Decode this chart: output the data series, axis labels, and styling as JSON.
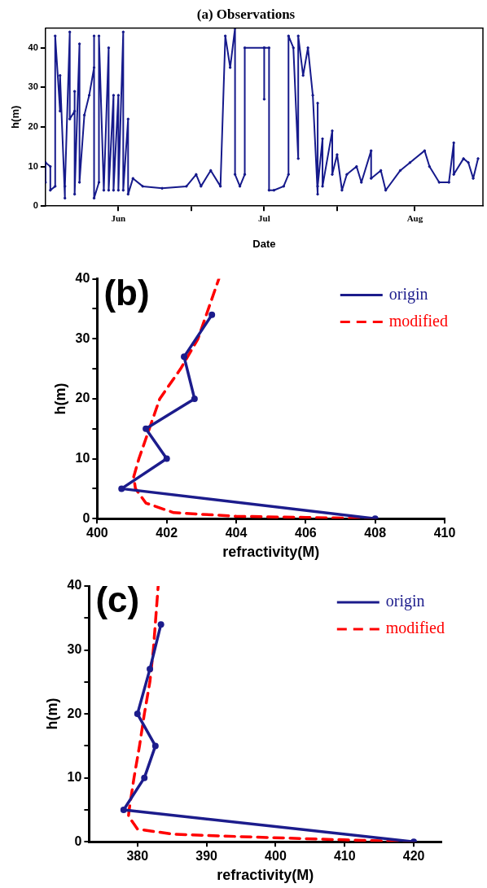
{
  "chart_data": [
    {
      "type": "line",
      "title": "(a) Observations",
      "xlabel": "Date",
      "ylabel": "h(m)",
      "x": [
        "--05-17",
        "--05-17",
        "--05-18",
        "--05-18",
        "--05-19",
        "--05-19",
        "--05-20",
        "--05-20",
        "--05-21",
        "--05-21",
        "--05-22",
        "--05-22",
        "--05-23",
        "--05-23",
        "--05-23",
        "--05-24",
        "--05-24",
        "--05-25",
        "--05-26",
        "--05-27",
        "--05-27",
        "--05-27",
        "--05-28",
        "--05-28",
        "--05-29",
        "--05-30",
        "--05-30",
        "--05-31",
        "--05-31",
        "--06-01",
        "--06-01",
        "--06-02",
        "--06-02",
        "--06-03",
        "--06-03",
        "--06-04",
        "--06-06",
        "--06-10",
        "--06-15",
        "--06-17",
        "--06-18",
        "--06-20",
        "--06-22",
        "--06-23",
        "--06-24",
        "--06-25",
        "--06-25",
        "--06-26",
        "--06-27",
        "--06-27",
        "--07-01",
        "--07-01",
        "--07-01",
        "--07-02",
        "--07-02",
        "--07-03",
        "--07-05",
        "--07-06",
        "--07-06",
        "--07-07",
        "--07-08",
        "--07-08",
        "--07-09",
        "--07-10",
        "--07-11",
        "--07-12",
        "--07-12",
        "--07-12",
        "--07-13",
        "--07-13",
        "--07-15",
        "--07-15",
        "--07-16",
        "--07-17",
        "--07-18",
        "--07-20",
        "--07-21",
        "--07-23",
        "--07-23",
        "--07-25",
        "--07-26",
        "--07-29",
        "--07-31",
        "--08-03",
        "--08-04",
        "--08-06",
        "--08-08",
        "--08-09",
        "--08-09",
        "--08-11",
        "--08-12",
        "--08-13",
        "--08-14"
      ],
      "series": [
        {
          "color": "#161a8c",
          "marker": "circle",
          "line_style": "solid",
          "values": [
            6,
            11,
            10,
            4,
            5,
            43,
            24,
            33,
            2,
            5,
            44,
            22,
            24,
            29,
            3,
            41,
            6,
            23,
            28,
            35,
            43,
            2,
            6,
            43,
            4,
            40,
            4,
            28,
            4,
            28,
            4,
            44,
            4,
            22,
            3,
            7,
            5,
            4.5,
            5,
            8,
            5,
            9,
            5,
            43,
            35,
            45,
            8,
            5,
            8,
            40,
            40,
            27,
            40,
            40,
            4,
            4,
            5,
            8,
            43,
            40,
            12,
            43,
            33,
            40,
            28,
            3,
            26,
            5,
            17,
            5,
            19,
            8,
            13,
            4,
            8,
            10,
            6,
            14,
            7,
            9,
            4,
            9,
            11,
            14,
            10,
            6,
            6,
            16,
            8,
            12,
            11,
            7,
            12
          ]
        }
      ],
      "xlim": [
        "--05-17",
        "--08-15"
      ],
      "xticks": [
        {
          "value": "--06-01",
          "label": "Jun"
        },
        {
          "value": "--06-16",
          "label": null
        },
        {
          "value": "--07-01",
          "label": "Jul"
        },
        {
          "value": "--07-16",
          "label": null
        },
        {
          "value": "--08-01",
          "label": "Aug"
        }
      ],
      "ylim": [
        0,
        45
      ],
      "yticks": [
        0,
        10,
        20,
        30,
        40
      ]
    },
    {
      "type": "line",
      "title": "(b)",
      "xlabel": "refractivity(M)",
      "ylabel": "h(m)",
      "legend": "top right",
      "series": [
        {
          "name": "origin",
          "color": "#1c1c8c",
          "marker": "circle",
          "line_style": "solid",
          "x": [
            408,
            400.7,
            402,
            401.4,
            402.8,
            402.5,
            403.3
          ],
          "values": [
            0,
            5,
            10,
            15,
            20,
            27,
            34
          ]
        },
        {
          "name": "modified",
          "color": "#ff0000",
          "marker": "none",
          "line_style": "dashed",
          "x": [
            408,
            406,
            404,
            402.2,
            401.4,
            401.1,
            401.05,
            401.2,
            401.5,
            401.8,
            402.4,
            402.9,
            403.5
          ],
          "values": [
            0,
            0.2,
            0.4,
            1,
            2.6,
            5,
            7,
            10,
            15,
            20,
            25,
            30,
            40
          ]
        }
      ],
      "xlim": [
        400,
        410
      ],
      "xticks": [
        400,
        402,
        404,
        406,
        408,
        410
      ],
      "ylim": [
        0,
        40
      ],
      "yticks": [
        0,
        {
          "value": 5,
          "label": null
        },
        10,
        {
          "value": 15,
          "label": null
        },
        20,
        {
          "value": 25,
          "label": null
        },
        30,
        {
          "value": 35,
          "label": null
        },
        40
      ]
    },
    {
      "type": "line",
      "title": "(c)",
      "xlabel": "refractivity(M)",
      "ylabel": "h(m)",
      "legend": "top right",
      "series": [
        {
          "name": "origin",
          "color": "#1c1c8c",
          "marker": "circle",
          "line_style": "solid",
          "x": [
            420,
            378,
            381,
            382.6,
            380,
            381.8,
            383.4
          ],
          "values": [
            0,
            5,
            10,
            15,
            20,
            27,
            34
          ]
        },
        {
          "name": "modified",
          "color": "#ff0000",
          "marker": "none",
          "line_style": "dashed",
          "x": [
            420,
            410,
            395,
            385,
            380,
            378.7,
            378.8,
            379.5,
            380.3,
            381,
            381.8,
            382.3,
            383
          ],
          "values": [
            0,
            0.3,
            0.8,
            1.2,
            2,
            4,
            5,
            10,
            15,
            20,
            25,
            30,
            40
          ]
        }
      ],
      "xlim": [
        373,
        424
      ],
      "xticks": [
        380,
        390,
        400,
        410,
        420
      ],
      "ylim": [
        0,
        40
      ],
      "yticks": [
        0,
        {
          "value": 5,
          "label": null
        },
        10,
        {
          "value": 15,
          "label": null
        },
        20,
        {
          "value": 25,
          "label": null
        },
        30,
        {
          "value": 35,
          "label": null
        },
        40
      ]
    }
  ]
}
